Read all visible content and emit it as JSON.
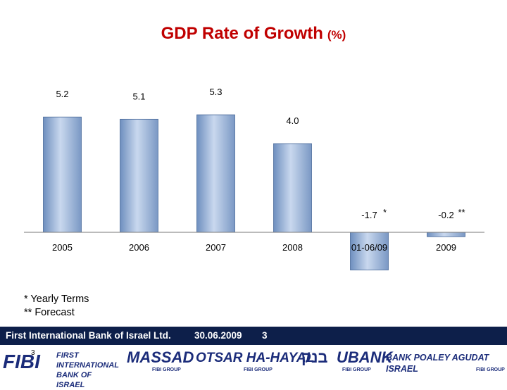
{
  "title": "GDP Rate of Growth",
  "title_unit": "(%)",
  "chart_data": {
    "type": "bar",
    "categories": [
      "2005",
      "2006",
      "2007",
      "2008",
      "01-06/09",
      "2009"
    ],
    "values": [
      5.2,
      5.1,
      5.3,
      4.0,
      -1.7,
      -0.2
    ],
    "value_labels": [
      "5.2",
      "5.1",
      "5.3",
      "4.0",
      "-1.7",
      "-0.2"
    ],
    "annotations": [
      "",
      "",
      "",
      "",
      "*",
      "**"
    ],
    "ylim": [
      -2,
      6
    ],
    "grid": false,
    "bar_color": "#9ab4d8"
  },
  "notes": [
    "* Yearly Terms",
    "** Forecast"
  ],
  "footer": {
    "bank_name": "First International Bank of Israel Ltd.",
    "date": "30.06.2009",
    "page": "3",
    "page_small": "3"
  },
  "logos": {
    "fibi": "FIBI",
    "first_intl": "FIRST INTERNATIONAL BANK OF ISRAEL",
    "massad": "MASSAD",
    "massad_sub": "FIBI GROUP",
    "otsar": "OTSAR HA-HAYAL",
    "otsar_sub": "FIBI GROUP",
    "hebrew": "בנק",
    "ubank": "UBANK",
    "ubank_sub": "FIBI GROUP",
    "poaley": "BANK POALEY AGUDAT ISRAEL",
    "poaley_sub": "FIBI GROUP"
  }
}
